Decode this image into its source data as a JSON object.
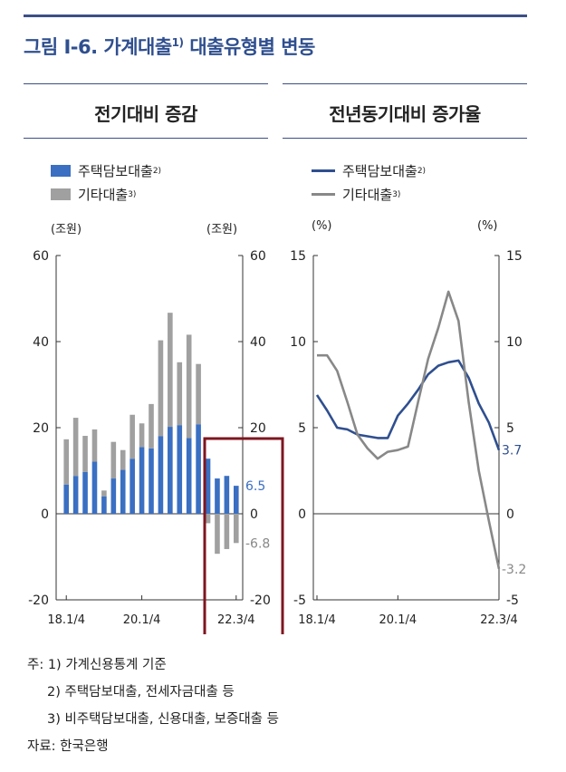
{
  "figure": {
    "title": "그림 Ⅰ-6. 가계대출",
    "title_sup": "1)",
    "title_rest": " 대출유형별 변동"
  },
  "left_panel": {
    "subtitle": "전기대비 증감",
    "legend": [
      {
        "label": "주택담보대출",
        "sup": "2)",
        "color": "#3a6fc2"
      },
      {
        "label": "기타대출",
        "sup": "3)",
        "color": "#a0a0a0"
      }
    ],
    "unit_left": "(조원)",
    "unit_right": "(조원)"
  },
  "right_panel": {
    "subtitle": "전년동기대비 증가율",
    "legend": [
      {
        "label": "주택담보대출",
        "sup": "2)",
        "color": "#2f4f8f"
      },
      {
        "label": "기타대출",
        "sup": "3)",
        "color": "#888888"
      }
    ],
    "unit_left": "(%)",
    "unit_right": "(%)"
  },
  "chart_data": [
    {
      "type": "bar",
      "stacked": true,
      "x_tick_labels": [
        "18.1/4",
        "20.1/4",
        "22.3/4"
      ],
      "ylim": [
        -20,
        60
      ],
      "yticks": [
        -20,
        0,
        20,
        40,
        60
      ],
      "series": [
        {
          "name": "주택담보대출",
          "color": "#3a6fc2",
          "values": [
            6.8,
            8.8,
            9.7,
            12.1,
            4.0,
            8.2,
            10.2,
            12.8,
            15.5,
            15.2,
            18.0,
            20.2,
            20.6,
            17.6,
            20.8,
            12.8,
            8.2,
            8.8,
            6.5
          ]
        },
        {
          "name": "기타대출",
          "color": "#a0a0a0",
          "values": [
            10.5,
            13.5,
            8.4,
            7.5,
            1.4,
            8.5,
            4.6,
            10.2,
            5.5,
            10.3,
            22.3,
            26.5,
            14.6,
            24.0,
            14.0,
            -2.2,
            -9.3,
            -8.2,
            -6.8
          ]
        }
      ],
      "annotations": [
        {
          "text": "6.5",
          "color": "#3a6fc2",
          "value": 6.5
        },
        {
          "text": "-6.8",
          "color": "#888888",
          "value": -6.8
        }
      ]
    },
    {
      "type": "line",
      "x_tick_labels": [
        "18.1/4",
        "20.1/4",
        "22.3/4"
      ],
      "ylim": [
        -5,
        15
      ],
      "yticks": [
        -5,
        0,
        5,
        10,
        15
      ],
      "series": [
        {
          "name": "주택담보대출",
          "color": "#2f4f8f",
          "values": [
            6.9,
            6.0,
            5.0,
            4.9,
            4.6,
            4.5,
            4.4,
            4.4,
            5.7,
            6.4,
            7.2,
            8.1,
            8.6,
            8.8,
            8.9,
            7.9,
            6.4,
            5.3,
            3.7
          ]
        },
        {
          "name": "기타대출",
          "color": "#888888",
          "values": [
            9.2,
            9.2,
            8.3,
            6.5,
            4.6,
            3.8,
            3.2,
            3.6,
            3.7,
            3.9,
            6.5,
            9.0,
            10.8,
            12.9,
            11.2,
            6.5,
            2.5,
            -0.4,
            -3.2
          ]
        }
      ],
      "annotations": [
        {
          "text": "3.7",
          "color": "#2f4f8f",
          "value": 3.7
        },
        {
          "text": "-3.2",
          "color": "#888888",
          "value": -3.2
        }
      ]
    }
  ],
  "notes": [
    "주: 1) 가계신용통계 기준",
    "2) 주택담보대출, 전세자금대출 등",
    "3) 비주택담보대출, 신용대출, 보증대출 등",
    "자료: 한국은행"
  ]
}
